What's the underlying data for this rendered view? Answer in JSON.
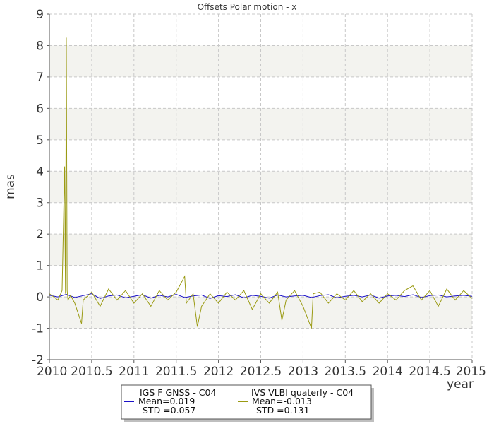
{
  "chart_data": {
    "type": "line",
    "title": "Offsets Polar motion - x",
    "xlabel": "year",
    "ylabel": "mas",
    "xlim": [
      2010,
      2015
    ],
    "ylim": [
      -2,
      9
    ],
    "x_ticks": [
      "2010",
      "2010.5",
      "2011",
      "2011.5",
      "2012",
      "2012.5",
      "2013",
      "2013.5",
      "2014",
      "2014.5",
      "2015"
    ],
    "y_ticks": [
      "-2",
      "-1",
      "0",
      "1",
      "2",
      "3",
      "4",
      "5",
      "6",
      "7",
      "8",
      "9"
    ],
    "grid": true,
    "background_bands": true,
    "legend_position": "bottom",
    "series": [
      {
        "name": "IGS F GNSS - C04",
        "color": "#1a10c8",
        "mean_label": "Mean=0.019",
        "std_label": "STD =0.057",
        "x": [
          2010.0,
          2010.1,
          2010.2,
          2010.3,
          2010.4,
          2010.5,
          2010.6,
          2010.7,
          2010.8,
          2010.9,
          2011.0,
          2011.1,
          2011.2,
          2011.3,
          2011.4,
          2011.5,
          2011.6,
          2011.7,
          2011.8,
          2011.9,
          2012.0,
          2012.1,
          2012.2,
          2012.3,
          2012.4,
          2012.5,
          2012.6,
          2012.7,
          2012.8,
          2012.9,
          2013.0,
          2013.1,
          2013.2,
          2013.3,
          2013.4,
          2013.5,
          2013.6,
          2013.7,
          2013.8,
          2013.9,
          2014.0,
          2014.1,
          2014.2,
          2014.3,
          2014.4,
          2014.5,
          2014.6,
          2014.7,
          2014.8,
          2014.9,
          2015.0
        ],
        "y": [
          0.05,
          0.0,
          0.08,
          -0.02,
          0.04,
          0.1,
          -0.05,
          0.03,
          0.06,
          -0.03,
          0.02,
          0.07,
          -0.04,
          0.05,
          0.0,
          0.08,
          -0.02,
          0.03,
          0.06,
          -0.05,
          0.04,
          0.01,
          0.07,
          -0.03,
          0.05,
          0.02,
          -0.04,
          0.06,
          0.0,
          0.03,
          0.05,
          -0.02,
          0.04,
          0.07,
          -0.03,
          0.02,
          0.05,
          0.0,
          0.06,
          -0.04,
          0.03,
          0.05,
          0.01,
          0.07,
          -0.02,
          0.04,
          0.06,
          0.0,
          0.03,
          0.05,
          0.02
        ]
      },
      {
        "name": "IVS VLBI quaterly - C04",
        "color": "#9a9a12",
        "mean_label": "Mean=-0.013",
        "std_label": "STD =0.131",
        "x": [
          2010.0,
          2010.1,
          2010.15,
          2010.18,
          2010.19,
          2010.2,
          2010.21,
          2010.22,
          2010.25,
          2010.3,
          2010.38,
          2010.4,
          2010.5,
          2010.6,
          2010.7,
          2010.8,
          2010.9,
          2011.0,
          2011.1,
          2011.2,
          2011.3,
          2011.4,
          2011.5,
          2011.6,
          2011.62,
          2011.7,
          2011.75,
          2011.8,
          2011.9,
          2012.0,
          2012.1,
          2012.2,
          2012.3,
          2012.4,
          2012.5,
          2012.6,
          2012.7,
          2012.75,
          2012.8,
          2012.9,
          2013.0,
          2013.1,
          2013.12,
          2013.2,
          2013.3,
          2013.4,
          2013.5,
          2013.6,
          2013.7,
          2013.8,
          2013.9,
          2014.0,
          2014.1,
          2014.2,
          2014.3,
          2014.4,
          2014.5,
          2014.6,
          2014.7,
          2014.8,
          2014.9,
          2015.0
        ],
        "y": [
          0.1,
          -0.1,
          0.2,
          4.15,
          0.1,
          8.25,
          0.2,
          -0.1,
          0.05,
          -0.2,
          -0.85,
          -0.1,
          0.15,
          -0.3,
          0.25,
          -0.1,
          0.2,
          -0.2,
          0.1,
          -0.3,
          0.2,
          -0.1,
          0.15,
          0.65,
          -0.2,
          0.1,
          -0.95,
          -0.3,
          0.1,
          -0.2,
          0.15,
          -0.1,
          0.2,
          -0.4,
          0.1,
          -0.2,
          0.15,
          -0.75,
          -0.1,
          0.2,
          -0.3,
          -1.0,
          0.1,
          0.15,
          -0.2,
          0.1,
          -0.1,
          0.2,
          -0.15,
          0.1,
          -0.2,
          0.1,
          -0.1,
          0.2,
          0.35,
          -0.1,
          0.2,
          -0.3,
          0.25,
          -0.1,
          0.2,
          -0.05
        ]
      }
    ]
  }
}
